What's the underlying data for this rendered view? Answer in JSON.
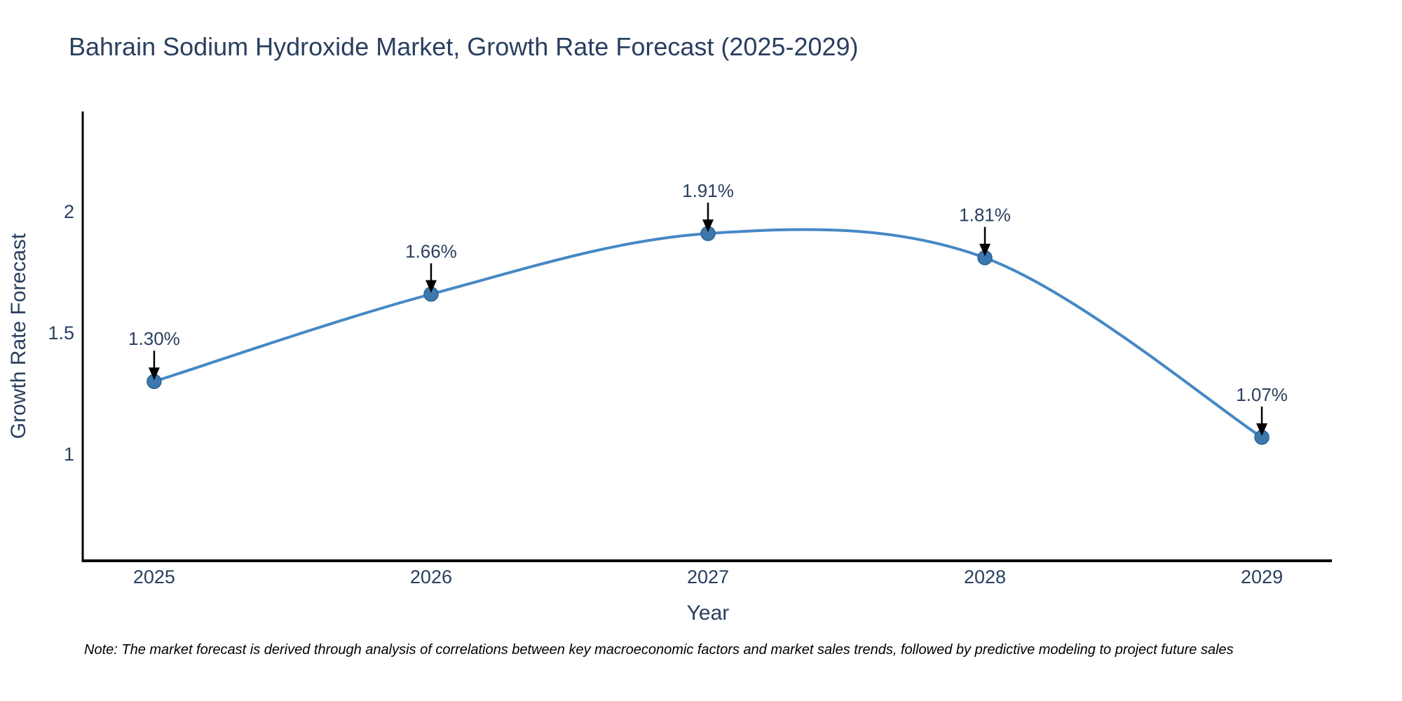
{
  "title": "Bahrain Sodium Hydroxide Market, Growth Rate Forecast (2025-2029)",
  "note": "Note: The market forecast is derived through analysis of correlations between key macroeconomic factors and market sales trends, followed by predictive modeling to project future sales",
  "chart_data": {
    "type": "line",
    "line_shape": "spline",
    "title": "Bahrain Sodium Hydroxide Market, Growth Rate Forecast (2025-2029)",
    "xlabel": "Year",
    "ylabel": "Growth Rate Forecast",
    "x": [
      2025,
      2026,
      2027,
      2028,
      2029
    ],
    "y": [
      1.3,
      1.66,
      1.91,
      1.81,
      1.07
    ],
    "point_labels": [
      "1.30%",
      "1.66%",
      "1.91%",
      "1.81%",
      "1.07%"
    ],
    "xtick_labels": [
      "2025",
      "2026",
      "2027",
      "2028",
      "2029"
    ],
    "yticks": [
      1,
      1.5,
      2
    ],
    "ytick_labels": [
      "1",
      "1.5",
      "2"
    ],
    "xlim": [
      2024.742,
      2029.253
    ],
    "ylim": [
      0.561,
      2.413
    ],
    "grid": false,
    "legend": false,
    "colors": {
      "line": "#4688c4",
      "marker": "#3c77ae",
      "marker_edge": "#2f6496",
      "axis": "#000000",
      "text": "#2a3f5f",
      "arrow": "#000000"
    }
  }
}
